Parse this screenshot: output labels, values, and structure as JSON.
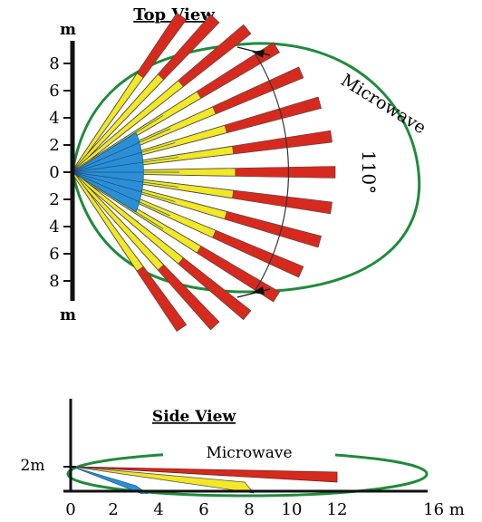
{
  "top_view": {
    "title": "Top View",
    "unit_top": "m",
    "unit_bottom": "m",
    "y_tick_labels": [
      "8",
      "6",
      "4",
      "2",
      "0",
      "2",
      "4",
      "6",
      "8"
    ],
    "microwave_label": "Microwave",
    "angle_label": "110°"
  },
  "side_view": {
    "title": "Side View",
    "height_label": "2m",
    "microwave_label": "Microwave",
    "x_tick_labels": [
      "0",
      "2",
      "4",
      "6",
      "8",
      "10",
      "12",
      "16 m"
    ]
  },
  "colors": {
    "microwave_outline": "#1e8c3a",
    "pir_long": "#d62a1e",
    "pir_mid": "#f2e826",
    "pir_short": "#2b8fd8",
    "axis": "#111111"
  }
}
